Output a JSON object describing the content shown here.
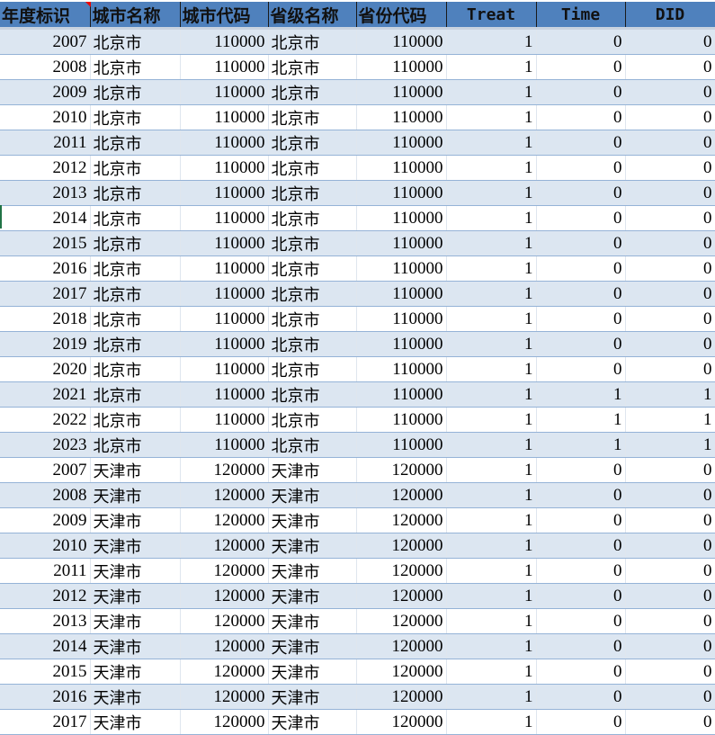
{
  "colors": {
    "header_bg": "#4f81bd",
    "row_alt": "#dce6f1",
    "row_border": "#95b3d7",
    "comment_marker": "#ee0000"
  },
  "columns": [
    {
      "label": "年度标识",
      "type": "num",
      "lang": "cn"
    },
    {
      "label": "城市名称",
      "type": "txt",
      "lang": "cn"
    },
    {
      "label": "城市代码",
      "type": "num",
      "lang": "cn"
    },
    {
      "label": "省级名称",
      "type": "txt",
      "lang": "cn"
    },
    {
      "label": "省份代码",
      "type": "num",
      "lang": "cn"
    },
    {
      "label": "Treat",
      "type": "num",
      "lang": "en"
    },
    {
      "label": "Time",
      "type": "num",
      "lang": "en"
    },
    {
      "label": "DID",
      "type": "num",
      "lang": "en"
    }
  ],
  "rows": [
    [
      "2007",
      "北京市",
      "110000",
      "北京市",
      "110000",
      "1",
      "0",
      "0"
    ],
    [
      "2008",
      "北京市",
      "110000",
      "北京市",
      "110000",
      "1",
      "0",
      "0"
    ],
    [
      "2009",
      "北京市",
      "110000",
      "北京市",
      "110000",
      "1",
      "0",
      "0"
    ],
    [
      "2010",
      "北京市",
      "110000",
      "北京市",
      "110000",
      "1",
      "0",
      "0"
    ],
    [
      "2011",
      "北京市",
      "110000",
      "北京市",
      "110000",
      "1",
      "0",
      "0"
    ],
    [
      "2012",
      "北京市",
      "110000",
      "北京市",
      "110000",
      "1",
      "0",
      "0"
    ],
    [
      "2013",
      "北京市",
      "110000",
      "北京市",
      "110000",
      "1",
      "0",
      "0"
    ],
    [
      "2014",
      "北京市",
      "110000",
      "北京市",
      "110000",
      "1",
      "0",
      "0"
    ],
    [
      "2015",
      "北京市",
      "110000",
      "北京市",
      "110000",
      "1",
      "0",
      "0"
    ],
    [
      "2016",
      "北京市",
      "110000",
      "北京市",
      "110000",
      "1",
      "0",
      "0"
    ],
    [
      "2017",
      "北京市",
      "110000",
      "北京市",
      "110000",
      "1",
      "0",
      "0"
    ],
    [
      "2018",
      "北京市",
      "110000",
      "北京市",
      "110000",
      "1",
      "0",
      "0"
    ],
    [
      "2019",
      "北京市",
      "110000",
      "北京市",
      "110000",
      "1",
      "0",
      "0"
    ],
    [
      "2020",
      "北京市",
      "110000",
      "北京市",
      "110000",
      "1",
      "0",
      "0"
    ],
    [
      "2021",
      "北京市",
      "110000",
      "北京市",
      "110000",
      "1",
      "1",
      "1"
    ],
    [
      "2022",
      "北京市",
      "110000",
      "北京市",
      "110000",
      "1",
      "1",
      "1"
    ],
    [
      "2023",
      "北京市",
      "110000",
      "北京市",
      "110000",
      "1",
      "1",
      "1"
    ],
    [
      "2007",
      "天津市",
      "120000",
      "天津市",
      "120000",
      "1",
      "0",
      "0"
    ],
    [
      "2008",
      "天津市",
      "120000",
      "天津市",
      "120000",
      "1",
      "0",
      "0"
    ],
    [
      "2009",
      "天津市",
      "120000",
      "天津市",
      "120000",
      "1",
      "0",
      "0"
    ],
    [
      "2010",
      "天津市",
      "120000",
      "天津市",
      "120000",
      "1",
      "0",
      "0"
    ],
    [
      "2011",
      "天津市",
      "120000",
      "天津市",
      "120000",
      "1",
      "0",
      "0"
    ],
    [
      "2012",
      "天津市",
      "120000",
      "天津市",
      "120000",
      "1",
      "0",
      "0"
    ],
    [
      "2013",
      "天津市",
      "120000",
      "天津市",
      "120000",
      "1",
      "0",
      "0"
    ],
    [
      "2014",
      "天津市",
      "120000",
      "天津市",
      "120000",
      "1",
      "0",
      "0"
    ],
    [
      "2015",
      "天津市",
      "120000",
      "天津市",
      "120000",
      "1",
      "0",
      "0"
    ],
    [
      "2016",
      "天津市",
      "120000",
      "天津市",
      "120000",
      "1",
      "0",
      "0"
    ],
    [
      "2017",
      "天津市",
      "120000",
      "天津市",
      "120000",
      "1",
      "0",
      "0"
    ]
  ]
}
